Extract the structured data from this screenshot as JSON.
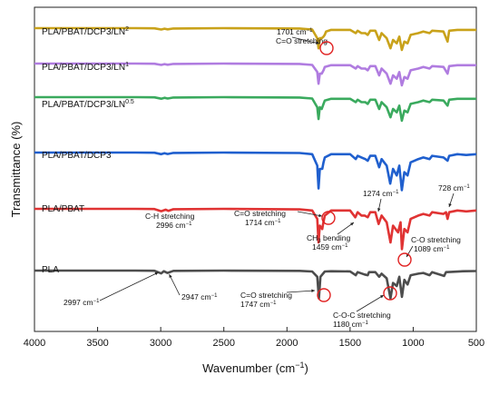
{
  "chart_data": {
    "type": "line",
    "xlabel": "Wavenumber (cm",
    "xlabel_exp": "−1",
    "xlabel_end": ")",
    "ylabel": "Transmittance (%)",
    "xlim": [
      4000,
      500
    ],
    "x_reversed": true,
    "x_ticks": [
      4000,
      3500,
      3000,
      2500,
      2000,
      1500,
      1000,
      500
    ],
    "grid": false,
    "series": [
      {
        "name": "PLA",
        "label_main": "PLA",
        "label_sup": "",
        "color": "#4d4d4d",
        "points": [
          [
            4000,
            0
          ],
          [
            3200,
            0
          ],
          [
            3050,
            0.1
          ],
          [
            2997,
            1.8
          ],
          [
            2975,
            0.4
          ],
          [
            2947,
            1.5
          ],
          [
            2900,
            0.2
          ],
          [
            2500,
            0
          ],
          [
            1900,
            0.2
          ],
          [
            1800,
            0.6
          ],
          [
            1760,
            4
          ],
          [
            1747,
            18
          ],
          [
            1735,
            4
          ],
          [
            1700,
            0.6
          ],
          [
            1650,
            0.4
          ],
          [
            1500,
            0.5
          ],
          [
            1455,
            3
          ],
          [
            1440,
            1
          ],
          [
            1385,
            2.5
          ],
          [
            1360,
            3
          ],
          [
            1350,
            1
          ],
          [
            1300,
            1
          ],
          [
            1270,
            4
          ],
          [
            1250,
            2
          ],
          [
            1210,
            5
          ],
          [
            1180,
            18
          ],
          [
            1160,
            8
          ],
          [
            1130,
            10
          ],
          [
            1110,
            4
          ],
          [
            1089,
            17
          ],
          [
            1070,
            6
          ],
          [
            1045,
            9
          ],
          [
            1020,
            3
          ],
          [
            960,
            2
          ],
          [
            920,
            1.5
          ],
          [
            870,
            3
          ],
          [
            850,
            1
          ],
          [
            755,
            3.5
          ],
          [
            740,
            1
          ],
          [
            700,
            0.8
          ],
          [
            600,
            0.4
          ],
          [
            500,
            0.3
          ]
        ]
      },
      {
        "name": "PLA/PBAT",
        "label_main": "PLA/PBAT",
        "label_sup": "",
        "color": "#e03333",
        "points": [
          [
            4000,
            0
          ],
          [
            3200,
            0
          ],
          [
            3050,
            0.1
          ],
          [
            2996,
            1.4
          ],
          [
            2960,
            0.5
          ],
          [
            2940,
            1.2
          ],
          [
            2900,
            0.2
          ],
          [
            2500,
            0
          ],
          [
            1900,
            0.3
          ],
          [
            1800,
            1
          ],
          [
            1760,
            6
          ],
          [
            1750,
            20
          ],
          [
            1740,
            10
          ],
          [
            1720,
            12
          ],
          [
            1714,
            9
          ],
          [
            1700,
            4
          ],
          [
            1650,
            1
          ],
          [
            1500,
            1
          ],
          [
            1459,
            5
          ],
          [
            1440,
            2
          ],
          [
            1410,
            4
          ],
          [
            1385,
            4
          ],
          [
            1360,
            5
          ],
          [
            1340,
            2
          ],
          [
            1300,
            2
          ],
          [
            1274,
            9
          ],
          [
            1250,
            4
          ],
          [
            1210,
            8
          ],
          [
            1180,
            20
          ],
          [
            1160,
            10
          ],
          [
            1120,
            14
          ],
          [
            1100,
            8
          ],
          [
            1089,
            24
          ],
          [
            1070,
            12
          ],
          [
            1045,
            14
          ],
          [
            1020,
            6
          ],
          [
            960,
            4
          ],
          [
            920,
            3
          ],
          [
            870,
            4
          ],
          [
            850,
            2
          ],
          [
            760,
            3
          ],
          [
            740,
            2
          ],
          [
            728,
            6
          ],
          [
            715,
            2
          ],
          [
            650,
            1
          ],
          [
            580,
            1.5
          ],
          [
            500,
            1
          ]
        ]
      },
      {
        "name": "PLA/PBAT/DCP3",
        "label_main": "PLA/PBAT/DCP3",
        "label_sup": "",
        "color": "#1f5fce",
        "points": [
          [
            4000,
            0
          ],
          [
            3200,
            0
          ],
          [
            3050,
            0.1
          ],
          [
            2996,
            1
          ],
          [
            2970,
            0.4
          ],
          [
            2945,
            0.9
          ],
          [
            2900,
            0.2
          ],
          [
            2500,
            0
          ],
          [
            1900,
            0.3
          ],
          [
            1800,
            1
          ],
          [
            1760,
            8
          ],
          [
            1750,
            22
          ],
          [
            1740,
            10
          ],
          [
            1720,
            10
          ],
          [
            1710,
            6
          ],
          [
            1700,
            3
          ],
          [
            1650,
            1
          ],
          [
            1500,
            1
          ],
          [
            1455,
            4
          ],
          [
            1440,
            2
          ],
          [
            1410,
            3
          ],
          [
            1380,
            4
          ],
          [
            1360,
            5
          ],
          [
            1340,
            2
          ],
          [
            1300,
            2
          ],
          [
            1270,
            9
          ],
          [
            1250,
            4
          ],
          [
            1210,
            8
          ],
          [
            1182,
            19
          ],
          [
            1160,
            10
          ],
          [
            1130,
            14
          ],
          [
            1110,
            8
          ],
          [
            1090,
            23
          ],
          [
            1070,
            12
          ],
          [
            1045,
            14
          ],
          [
            1020,
            6
          ],
          [
            960,
            4
          ],
          [
            920,
            3
          ],
          [
            870,
            4
          ],
          [
            850,
            2
          ],
          [
            760,
            3
          ],
          [
            728,
            5
          ],
          [
            715,
            2
          ],
          [
            650,
            1
          ],
          [
            580,
            1.5
          ],
          [
            500,
            1
          ]
        ]
      },
      {
        "name": "PLA/PBAT/DCP3/LN0.5",
        "label_main": "PLA/PBAT/DCP3/LN",
        "label_sup": "0.5",
        "color": "#3aaa5e",
        "points": [
          [
            4000,
            0
          ],
          [
            3200,
            0
          ],
          [
            3050,
            0.1
          ],
          [
            2996,
            0.9
          ],
          [
            2970,
            0.4
          ],
          [
            2945,
            0.8
          ],
          [
            2900,
            0.2
          ],
          [
            2500,
            0
          ],
          [
            1900,
            0.2
          ],
          [
            1800,
            0.8
          ],
          [
            1760,
            6
          ],
          [
            1750,
            13
          ],
          [
            1740,
            6
          ],
          [
            1725,
            7
          ],
          [
            1710,
            4
          ],
          [
            1700,
            2
          ],
          [
            1650,
            1
          ],
          [
            1500,
            1
          ],
          [
            1455,
            3
          ],
          [
            1440,
            1.5
          ],
          [
            1410,
            3
          ],
          [
            1380,
            3
          ],
          [
            1360,
            4
          ],
          [
            1340,
            1.5
          ],
          [
            1300,
            1.5
          ],
          [
            1270,
            7
          ],
          [
            1250,
            3
          ],
          [
            1210,
            6
          ],
          [
            1180,
            12
          ],
          [
            1160,
            7
          ],
          [
            1130,
            9
          ],
          [
            1110,
            5
          ],
          [
            1090,
            14
          ],
          [
            1070,
            8
          ],
          [
            1045,
            9
          ],
          [
            1020,
            4
          ],
          [
            960,
            3
          ],
          [
            920,
            2
          ],
          [
            870,
            3
          ],
          [
            850,
            1.5
          ],
          [
            760,
            2
          ],
          [
            728,
            5
          ],
          [
            715,
            1.5
          ],
          [
            650,
            1
          ],
          [
            580,
            1
          ],
          [
            500,
            1
          ]
        ]
      },
      {
        "name": "PLA/PBAT/DCP3/LN1",
        "label_main": "PLA/PBAT/DCP3/LN",
        "label_sup": "1",
        "color": "#b07ce0",
        "points": [
          [
            4000,
            0
          ],
          [
            3200,
            0
          ],
          [
            3050,
            0.1
          ],
          [
            2996,
            0.8
          ],
          [
            2970,
            0.3
          ],
          [
            2945,
            0.7
          ],
          [
            2900,
            0.2
          ],
          [
            2500,
            0
          ],
          [
            1900,
            0.2
          ],
          [
            1800,
            0.8
          ],
          [
            1760,
            5
          ],
          [
            1750,
            12
          ],
          [
            1740,
            6
          ],
          [
            1725,
            6
          ],
          [
            1710,
            4
          ],
          [
            1700,
            2
          ],
          [
            1650,
            1
          ],
          [
            1500,
            1
          ],
          [
            1455,
            3
          ],
          [
            1440,
            1.5
          ],
          [
            1410,
            3
          ],
          [
            1380,
            3
          ],
          [
            1360,
            4
          ],
          [
            1340,
            1.5
          ],
          [
            1300,
            1.5
          ],
          [
            1270,
            7
          ],
          [
            1250,
            3
          ],
          [
            1210,
            6
          ],
          [
            1180,
            12
          ],
          [
            1160,
            7
          ],
          [
            1130,
            9
          ],
          [
            1110,
            5
          ],
          [
            1090,
            13
          ],
          [
            1070,
            8
          ],
          [
            1045,
            9
          ],
          [
            1020,
            4
          ],
          [
            960,
            3
          ],
          [
            920,
            2
          ],
          [
            870,
            3
          ],
          [
            850,
            1.5
          ],
          [
            760,
            2
          ],
          [
            728,
            6
          ],
          [
            715,
            1.5
          ],
          [
            650,
            1
          ],
          [
            580,
            1
          ],
          [
            500,
            1
          ]
        ]
      },
      {
        "name": "PLA/PBAT/DCP3/LN2",
        "label_main": "PLA/PBAT/DCP3/LN",
        "label_sup": "2",
        "color": "#c9a21a",
        "points": [
          [
            4000,
            0
          ],
          [
            3200,
            0
          ],
          [
            3050,
            0.1
          ],
          [
            2996,
            0.8
          ],
          [
            2970,
            0.3
          ],
          [
            2945,
            0.7
          ],
          [
            2900,
            0.2
          ],
          [
            2500,
            0
          ],
          [
            1900,
            0.2
          ],
          [
            1800,
            0.8
          ],
          [
            1760,
            6
          ],
          [
            1750,
            12
          ],
          [
            1740,
            6
          ],
          [
            1725,
            6
          ],
          [
            1710,
            5
          ],
          [
            1701,
            4
          ],
          [
            1690,
            2
          ],
          [
            1650,
            1
          ],
          [
            1500,
            1
          ],
          [
            1455,
            3
          ],
          [
            1440,
            1.5
          ],
          [
            1410,
            3
          ],
          [
            1380,
            3
          ],
          [
            1360,
            4
          ],
          [
            1340,
            1.5
          ],
          [
            1300,
            1.5
          ],
          [
            1270,
            7
          ],
          [
            1250,
            3
          ],
          [
            1210,
            6
          ],
          [
            1180,
            12
          ],
          [
            1160,
            7
          ],
          [
            1130,
            9
          ],
          [
            1110,
            5
          ],
          [
            1090,
            13
          ],
          [
            1070,
            8
          ],
          [
            1045,
            9
          ],
          [
            1020,
            4
          ],
          [
            960,
            3
          ],
          [
            920,
            2
          ],
          [
            870,
            3
          ],
          [
            850,
            1.5
          ],
          [
            760,
            2
          ],
          [
            728,
            8
          ],
          [
            715,
            1.5
          ],
          [
            650,
            1
          ],
          [
            580,
            1
          ],
          [
            500,
            1
          ]
        ]
      }
    ],
    "annotations": [
      {
        "id": "a2997",
        "lines": [
          "2997 cm"
        ],
        "sup": [
          "−1"
        ],
        "circle": false
      },
      {
        "id": "a2947",
        "lines": [
          "2947 cm"
        ],
        "sup": [
          "−1"
        ],
        "circle": false
      },
      {
        "id": "a1747",
        "lines": [
          "C=O stretching",
          "1747 cm"
        ],
        "sup": [
          "",
          "−1"
        ],
        "circle": true
      },
      {
        "id": "a1180",
        "lines": [
          "C-O-C stretching",
          "1180 cm"
        ],
        "sup": [
          "",
          "−1"
        ],
        "circle": true
      },
      {
        "id": "a2996",
        "lines": [
          "C-H stretching",
          "2996 cm"
        ],
        "sup": [
          "",
          "−1"
        ],
        "circle": false
      },
      {
        "id": "a1714",
        "lines": [
          "C=O stretching",
          "1714 cm"
        ],
        "sup": [
          "",
          "−1"
        ],
        "circle": true
      },
      {
        "id": "a1459",
        "lines": [
          "CH",
          "1459 cm"
        ],
        "sub": "3",
        "after": " bending",
        "sup": [
          "",
          "−1"
        ],
        "circle": false
      },
      {
        "id": "a1274",
        "lines": [
          "1274 cm"
        ],
        "sup": [
          "−1"
        ],
        "circle": false
      },
      {
        "id": "a1089",
        "lines": [
          "C-O stretching",
          "1089 cm"
        ],
        "sup": [
          "",
          "−1"
        ],
        "circle": true
      },
      {
        "id": "a728",
        "lines": [
          "728 cm"
        ],
        "sup": [
          "−1"
        ],
        "circle": false
      },
      {
        "id": "a1701",
        "lines": [
          "1701 cm",
          "C=O stretching"
        ],
        "sup": [
          "−1",
          ""
        ],
        "circle": true
      }
    ]
  }
}
